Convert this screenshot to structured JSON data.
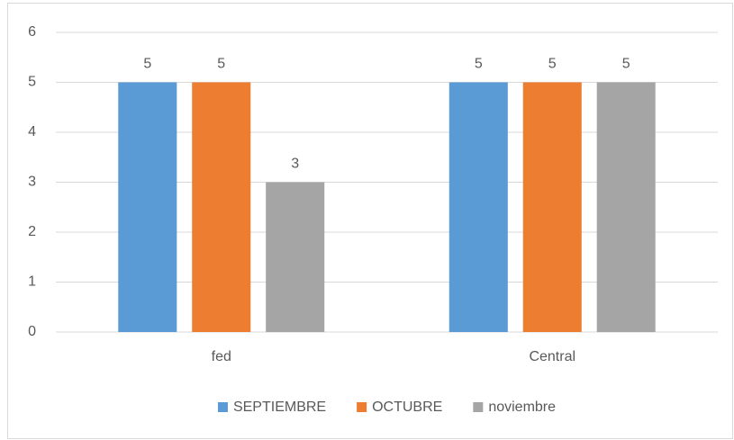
{
  "chart_data": {
    "type": "bar",
    "categories": [
      "fed",
      "Central"
    ],
    "series": [
      {
        "name": "SEPTIEMBRE",
        "color": "#5b9bd5",
        "values": [
          5,
          5
        ]
      },
      {
        "name": "OCTUBRE",
        "color": "#ed7d31",
        "values": [
          5,
          5
        ]
      },
      {
        "name": "noviembre",
        "color": "#a5a5a5",
        "values": [
          3,
          5
        ]
      }
    ],
    "ylim": [
      0,
      6
    ],
    "yticks": [
      0,
      1,
      2,
      3,
      4,
      5,
      6
    ],
    "grid": true,
    "legend": "bottom"
  }
}
